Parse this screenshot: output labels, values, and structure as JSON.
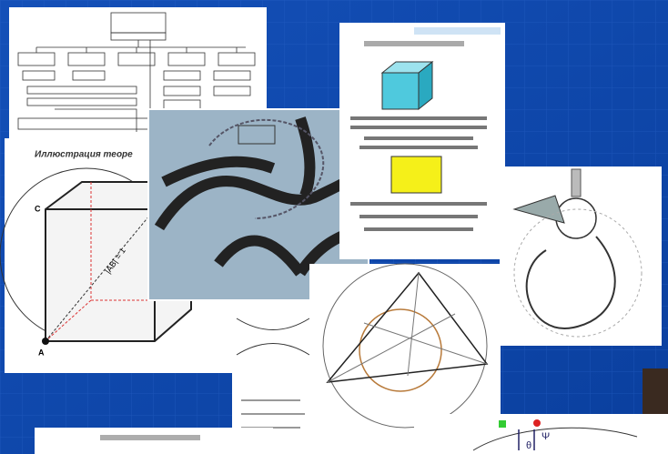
{
  "panels": {
    "cube": {
      "title": "Иллюстрация теоре",
      "edge_label": "|AB| = 1",
      "vertex_a": "A",
      "vertex_c": "C"
    },
    "bottom_right": {
      "theta": "θ",
      "psi": "Ψ"
    }
  }
}
